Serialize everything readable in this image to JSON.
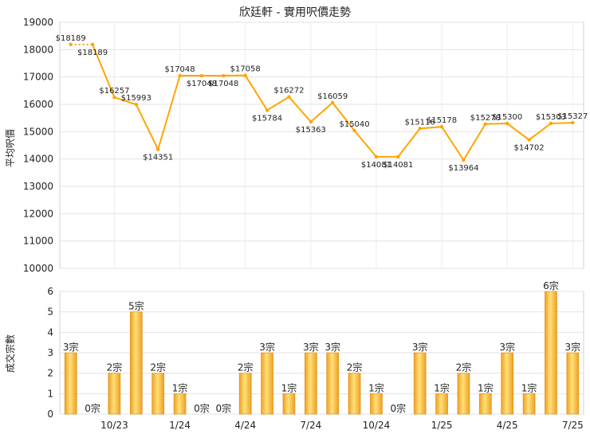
{
  "chart_data": [
    {
      "type": "line",
      "title": "欣廷軒 - 實用呎價走勢",
      "ylabel": "平均呎價",
      "ylim": [
        10000,
        19000
      ],
      "yticks": [
        10000,
        11000,
        12000,
        13000,
        14000,
        15000,
        16000,
        17000,
        18000,
        19000
      ],
      "grid": true,
      "series": [
        {
          "color": "#ffa500",
          "values": [
            18189,
            18189,
            16257,
            15993,
            14351,
            17048,
            17048,
            17048,
            17058,
            15784,
            16272,
            15363,
            16059,
            15040,
            14081,
            14081,
            15116,
            15178,
            13964,
            15278,
            15300,
            14702,
            15303,
            15327
          ],
          "labels": [
            "$18189",
            "$18189",
            "$16257",
            "$15993",
            "$14351",
            "$17048",
            "$17048",
            "$17048",
            "$17058",
            "$15784",
            "$16272",
            "$15363",
            "$16059",
            "$15040",
            "$14081",
            "$14081",
            "$15116",
            "$15178",
            "$13964",
            "$15278",
            "$15300",
            "$14702",
            "$15303",
            "$15327"
          ]
        }
      ]
    },
    {
      "type": "bar",
      "ylabel": "成交宗數",
      "ylim": [
        0,
        6
      ],
      "yticks": [
        0,
        1,
        2,
        3,
        4,
        5,
        6
      ],
      "grid": true,
      "x_tick_labels": [
        "10/23",
        "1/24",
        "4/24",
        "7/24",
        "10/24",
        "1/25",
        "4/25",
        "7/25"
      ],
      "values": [
        3,
        0,
        2,
        5,
        2,
        1,
        0,
        0,
        2,
        3,
        1,
        3,
        3,
        2,
        1,
        0,
        3,
        1,
        2,
        1,
        3,
        1,
        6,
        3
      ],
      "labels": [
        "3宗",
        "0宗",
        "2宗",
        "5宗",
        "2宗",
        "1宗",
        "0宗",
        "0宗",
        "2宗",
        "3宗",
        "1宗",
        "3宗",
        "3宗",
        "2宗",
        "1宗",
        "0宗",
        "3宗",
        "1宗",
        "2宗",
        "1宗",
        "3宗",
        "1宗",
        "6宗",
        "3宗"
      ]
    }
  ]
}
